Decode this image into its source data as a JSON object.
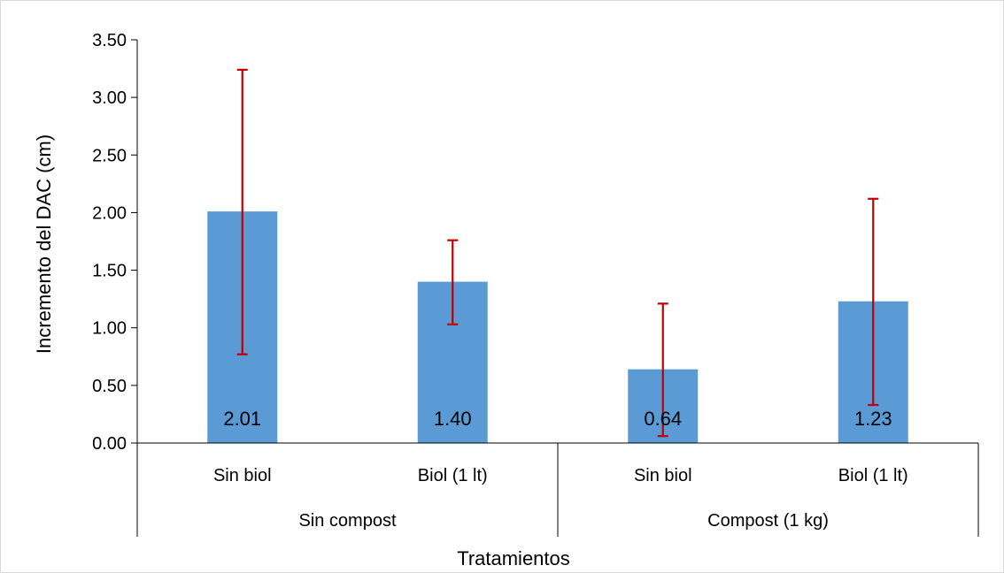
{
  "chart_data": {
    "type": "bar",
    "categories": [
      "Sin biol",
      "Biol (1 lt)",
      "Sin biol",
      "Biol (1 lt)"
    ],
    "groups": [
      {
        "label": "Sin compost",
        "categories": [
          0,
          1
        ]
      },
      {
        "label": "Compost (1 kg)",
        "categories": [
          2,
          3
        ]
      }
    ],
    "values": [
      2.01,
      1.4,
      0.64,
      1.23
    ],
    "value_labels": [
      "2.01",
      "1.40",
      "0.64",
      "1.23"
    ],
    "error_low": [
      0.77,
      1.03,
      0.06,
      0.33
    ],
    "error_high": [
      3.24,
      1.76,
      1.21,
      2.12
    ],
    "ylabel": "Incremento del DAC (cm)",
    "xlabel": "Tratamientos",
    "ylim": [
      0,
      3.5
    ],
    "yticks": [
      "0.00",
      "0.50",
      "1.00",
      "1.50",
      "2.00",
      "2.50",
      "3.00",
      "3.50"
    ],
    "grid": false,
    "colors": {
      "bar": "#5b9bd5",
      "error_bar": "#c00000",
      "axis": "#000000"
    }
  }
}
